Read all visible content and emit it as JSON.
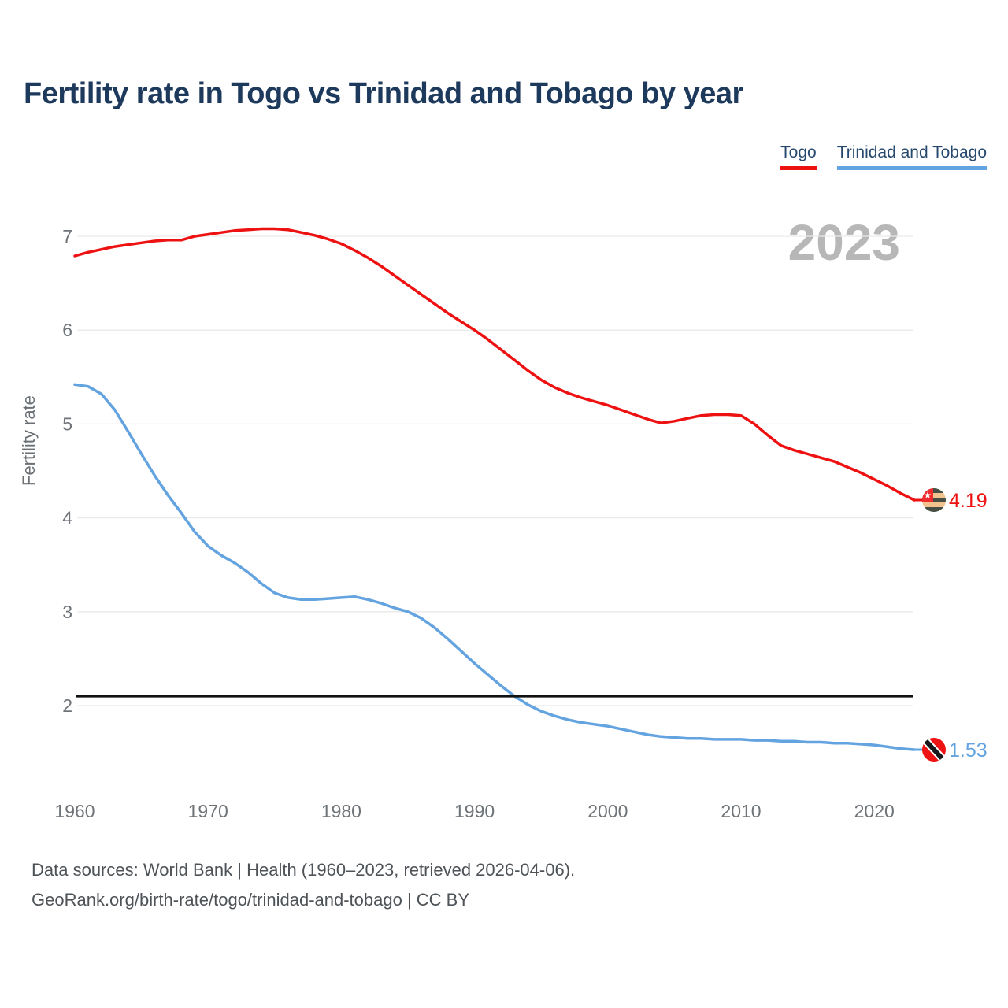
{
  "title": "Fertility rate in Togo vs Trinidad and Tobago by year",
  "watermark_year": "2023",
  "legend": [
    {
      "label": "Togo",
      "color": "#ee1111"
    },
    {
      "label": "Trinidad and Tobago",
      "color": "#63a3e0"
    }
  ],
  "y_axis": {
    "label": "Fertility rate",
    "ticks": [
      2,
      3,
      4,
      5,
      6,
      7
    ]
  },
  "x_axis": {
    "ticks": [
      1960,
      1970,
      1980,
      1990,
      2000,
      2010,
      2020
    ]
  },
  "reference_line": {
    "value": 2.1,
    "color": "#111111"
  },
  "footer": {
    "line1": "Data sources: World Bank | Health (1960–2023, retrieved 2026-04-06).",
    "line2": "GeoRank.org/birth-rate/togo/trinidad-and-tobago | CC BY"
  },
  "flag_colors": {
    "togo": {
      "canton": "#ef2b2d",
      "star": "#ffffff",
      "stripe_dark": "#474f44",
      "stripe_light": "#f2c28f"
    },
    "trinidad_and_tobago": {
      "field": "#ee1212",
      "band": "#16181b",
      "band_border": "#ffffff"
    }
  },
  "chart_data": {
    "type": "line",
    "title": "Fertility rate in Togo vs Trinidad and Tobago by year",
    "xlabel": "",
    "ylabel": "Fertility rate",
    "x_start": 1960,
    "x_end": 2023,
    "ylim": [
      1.4,
      7.3
    ],
    "grid": "horizontal",
    "legend_position": "top-right",
    "reference_value": 2.1,
    "series": [
      {
        "name": "Togo",
        "color": "#ee1111",
        "end_label": "4.19",
        "flag": "togo",
        "values": [
          6.79,
          6.83,
          6.86,
          6.89,
          6.91,
          6.93,
          6.95,
          6.96,
          6.96,
          7.0,
          7.02,
          7.04,
          7.06,
          7.07,
          7.08,
          7.08,
          7.07,
          7.04,
          7.01,
          6.97,
          6.92,
          6.85,
          6.77,
          6.68,
          6.58,
          6.48,
          6.38,
          6.28,
          6.18,
          6.09,
          6.0,
          5.9,
          5.79,
          5.68,
          5.57,
          5.47,
          5.39,
          5.33,
          5.28,
          5.24,
          5.2,
          5.15,
          5.1,
          5.05,
          5.01,
          5.03,
          5.06,
          5.09,
          5.1,
          5.1,
          5.09,
          5.0,
          4.88,
          4.77,
          4.72,
          4.68,
          4.64,
          4.6,
          4.54,
          4.48,
          4.41,
          4.34,
          4.26,
          4.19
        ]
      },
      {
        "name": "Trinidad and Tobago",
        "color": "#63a3e0",
        "end_label": "1.53",
        "flag": "trinidad_and_tobago",
        "values": [
          5.42,
          5.4,
          5.32,
          5.15,
          4.92,
          4.68,
          4.45,
          4.24,
          4.05,
          3.85,
          3.7,
          3.6,
          3.52,
          3.42,
          3.3,
          3.2,
          3.15,
          3.13,
          3.13,
          3.14,
          3.15,
          3.16,
          3.13,
          3.09,
          3.04,
          3.0,
          2.93,
          2.83,
          2.71,
          2.58,
          2.45,
          2.33,
          2.21,
          2.1,
          2.01,
          1.94,
          1.89,
          1.85,
          1.82,
          1.8,
          1.78,
          1.75,
          1.72,
          1.69,
          1.67,
          1.66,
          1.65,
          1.65,
          1.64,
          1.64,
          1.64,
          1.63,
          1.63,
          1.62,
          1.62,
          1.61,
          1.61,
          1.6,
          1.6,
          1.59,
          1.58,
          1.56,
          1.54,
          1.53
        ]
      }
    ]
  }
}
